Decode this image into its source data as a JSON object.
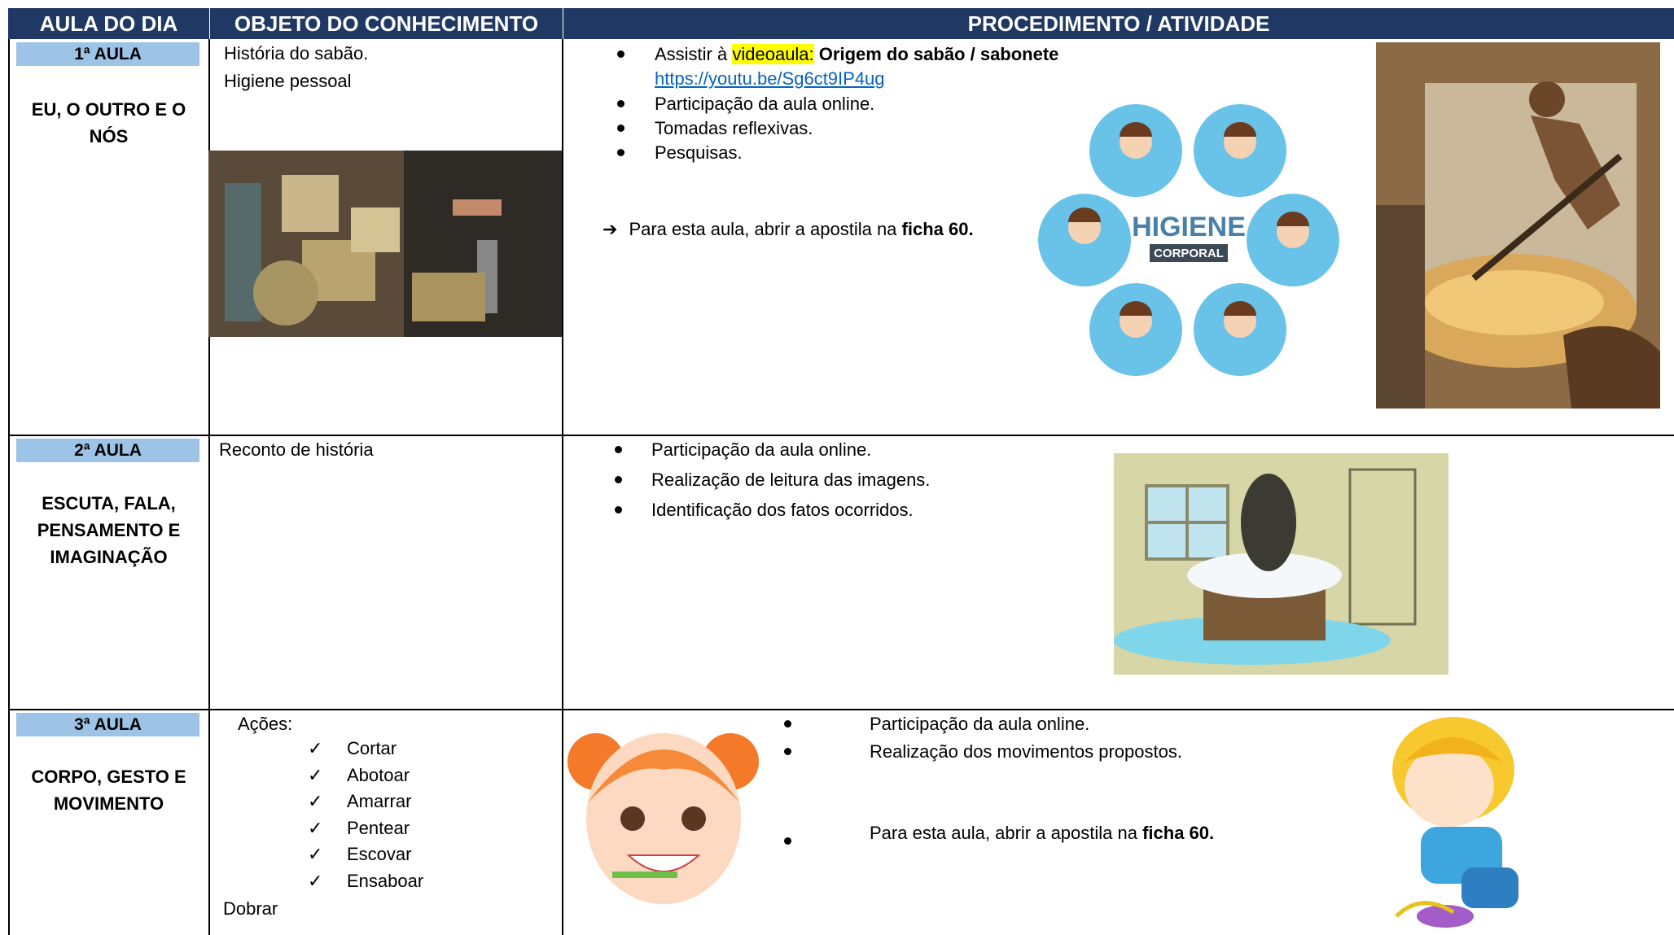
{
  "header": [
    "AULA DO DIA",
    "OBJETO DO CONHECIMENTO",
    "PROCEDIMENTO / ATIVIDADE"
  ],
  "rows": [
    {
      "aula": "1ª AULA",
      "campo": [
        "EU, O OUTRO E O",
        "NÓS"
      ],
      "objeto": [
        "História do sabão.",
        "Higiene pessoal"
      ],
      "video": {
        "prefix": "Assistir à ",
        "highlight": "videoaula:",
        "title": " Origem do sabão / sabonete",
        "link": "https://youtu.be/Sg6ct9IP4ug"
      },
      "items": [
        "Participação da aula online.",
        "Tomadas reflexivas.",
        "Pesquisas."
      ],
      "note": {
        "text": "Para esta aula, abrir a apostila na ",
        "bold": "ficha 60."
      },
      "image_text": [
        "HIGIENE",
        "CORPORAL"
      ]
    },
    {
      "aula": "2ª AULA",
      "campo": [
        "ESCUTA, FALA,",
        "PENSAMENTO E",
        "IMAGINAÇÃO"
      ],
      "objeto": [
        "Reconto de história"
      ],
      "items": [
        "Participação da aula online.",
        "Realização de leitura das imagens.",
        "Identificação dos fatos ocorridos."
      ]
    },
    {
      "aula": "3ª AULA",
      "campo": [
        "CORPO, GESTO E",
        "MOVIMENTO"
      ],
      "objeto_title": "Ações:",
      "checklist": [
        "Cortar",
        "Abotoar",
        "Amarrar",
        "Pentear",
        "Escovar",
        "Ensaboar"
      ],
      "objeto_end": "Dobrar",
      "items": [
        "Participação da aula online.",
        "Realização dos movimentos propostos."
      ],
      "note": {
        "text": "Para esta aula, abrir a apostila na ",
        "bold": "ficha 60."
      }
    }
  ]
}
